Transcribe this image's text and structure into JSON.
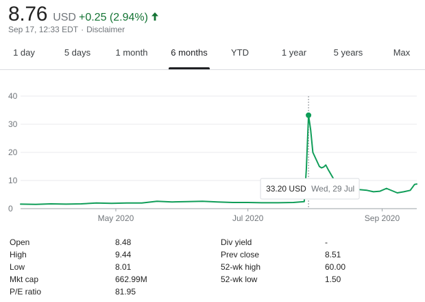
{
  "quote": {
    "price": "8.76",
    "currency": "USD",
    "change": "+0.25 (2.94%)",
    "timestamp": "Sep 17, 12:33 EDT",
    "separator": "·",
    "disclaimer": "Disclaimer",
    "change_color": "#137333"
  },
  "tabs": [
    {
      "label": "1 day",
      "active": false
    },
    {
      "label": "5 days",
      "active": false
    },
    {
      "label": "1 month",
      "active": false
    },
    {
      "label": "6 months",
      "active": true
    },
    {
      "label": "YTD",
      "active": false
    },
    {
      "label": "1 year",
      "active": false
    },
    {
      "label": "5 years",
      "active": false
    },
    {
      "label": "Max",
      "active": false
    }
  ],
  "chart_data": {
    "type": "line",
    "title": "",
    "xlabel": "",
    "ylabel": "",
    "ylim": [
      0,
      40
    ],
    "yticks": [
      0,
      10,
      20,
      30,
      40
    ],
    "ytick_labels": [
      "0",
      "10",
      "20",
      "30",
      "40"
    ],
    "xtick_labels": [
      "May 2020",
      "Jul 2020",
      "Sep 2020"
    ],
    "xlim": [
      "2020-03-18",
      "2020-09-17"
    ],
    "xticks": [
      "2020-05-01",
      "2020-07-01",
      "2020-09-01"
    ],
    "grid": true,
    "line_color": "#0f9d58",
    "series": [
      {
        "x": [
          "2020-03-18",
          "2020-03-25",
          "2020-04-01",
          "2020-04-08",
          "2020-04-15",
          "2020-04-22",
          "2020-04-29",
          "2020-05-06",
          "2020-05-13",
          "2020-05-20",
          "2020-05-27",
          "2020-06-03",
          "2020-06-10",
          "2020-06-17",
          "2020-06-24",
          "2020-07-01",
          "2020-07-08",
          "2020-07-15",
          "2020-07-22",
          "2020-07-27",
          "2020-07-28",
          "2020-07-29",
          "2020-07-30",
          "2020-07-31",
          "2020-08-03",
          "2020-08-04",
          "2020-08-05",
          "2020-08-06",
          "2020-08-07",
          "2020-08-10",
          "2020-08-11",
          "2020-08-13",
          "2020-08-17",
          "2020-08-21",
          "2020-08-25",
          "2020-08-28",
          "2020-08-31",
          "2020-09-03",
          "2020-09-08",
          "2020-09-11",
          "2020-09-14",
          "2020-09-16",
          "2020-09-17"
        ],
        "y": [
          1.6,
          1.5,
          1.7,
          1.6,
          1.7,
          2.0,
          1.9,
          2.0,
          2.0,
          2.6,
          2.4,
          2.5,
          2.6,
          2.4,
          2.2,
          2.2,
          2.1,
          2.1,
          2.2,
          2.5,
          14.0,
          33.2,
          28.0,
          20.0,
          15.0,
          14.5,
          14.8,
          15.5,
          14.0,
          10.0,
          7.5,
          7.2,
          7.0,
          6.8,
          6.5,
          6.0,
          6.2,
          7.2,
          5.6,
          6.0,
          6.5,
          8.6,
          8.76
        ]
      }
    ],
    "tooltip": {
      "value": "33.20 USD",
      "date": "Wed, 29 Jul",
      "x": "2020-07-29",
      "y": 33.2
    }
  },
  "stats": [
    {
      "label": "Open",
      "value": "8.48",
      "label2": "Div yield",
      "value2": "-"
    },
    {
      "label": "High",
      "value": "9.44",
      "label2": "Prev close",
      "value2": "8.51"
    },
    {
      "label": "Low",
      "value": "8.01",
      "label2": "52-wk high",
      "value2": "60.00"
    },
    {
      "label": "Mkt cap",
      "value": "662.99M",
      "label2": "52-wk low",
      "value2": "1.50"
    },
    {
      "label": "P/E ratio",
      "value": "81.95",
      "label2": "",
      "value2": ""
    }
  ]
}
